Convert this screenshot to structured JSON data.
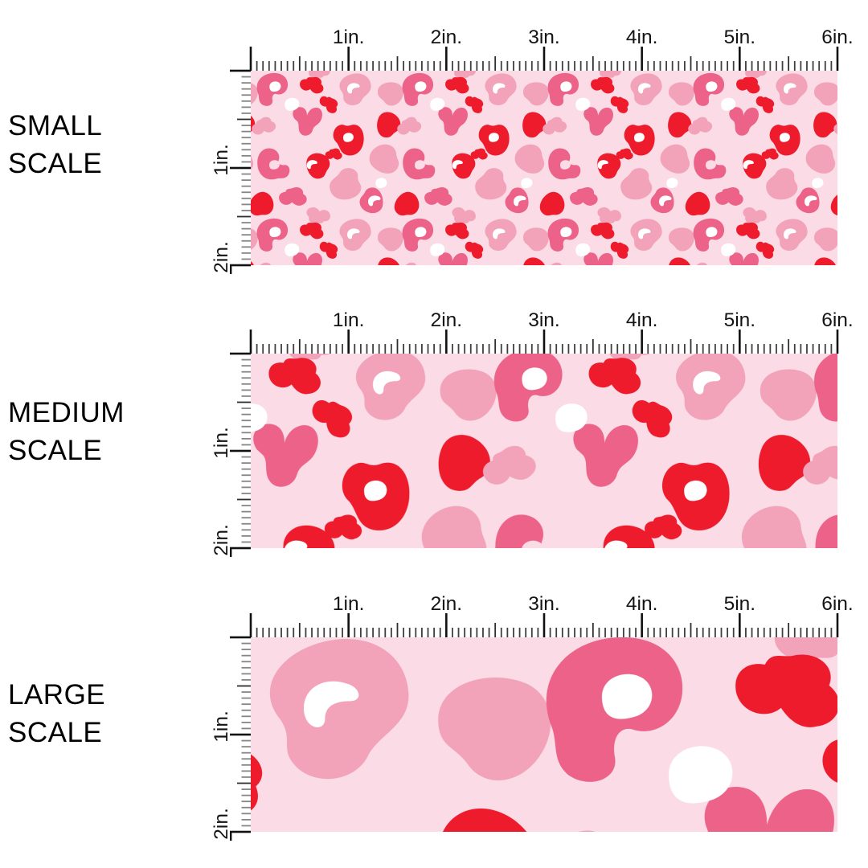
{
  "figure": {
    "kind": "fabric-pattern-scale-comparison",
    "pattern_name": "pink-leopard-print"
  },
  "panels": [
    {
      "name": "small-scale",
      "label_lines": [
        "SMALL",
        "SCALE"
      ]
    },
    {
      "name": "medium-scale",
      "label_lines": [
        "MEDIUM",
        "SCALE"
      ]
    },
    {
      "name": "large-scale",
      "label_lines": [
        "LARGE",
        "SCALE"
      ]
    }
  ],
  "ruler": {
    "horizontal_tick_labels": [
      "1in.",
      "2in.",
      "3in.",
      "4in.",
      "5in.",
      "6in."
    ],
    "vertical_tick_labels": [
      "1in.",
      "2in."
    ],
    "inches_horizontal": 6,
    "inches_vertical": 2,
    "divisions_per_inch": 16
  },
  "colors": {
    "page_background": "#FFFFFF",
    "swatch_background": "#FBDCE6",
    "light_pink": "#F2A3BA",
    "rose_pink": "#EC6288",
    "red": "#EE1B2D",
    "white": "#FFFFFF",
    "tick_major": "#111111",
    "tick_medium": "#2E2E2E",
    "tick_minor_h": "#3F3F3F",
    "tick_minor_v": "#868686",
    "label_text": "#141414",
    "scale_label_text": "#000000"
  }
}
